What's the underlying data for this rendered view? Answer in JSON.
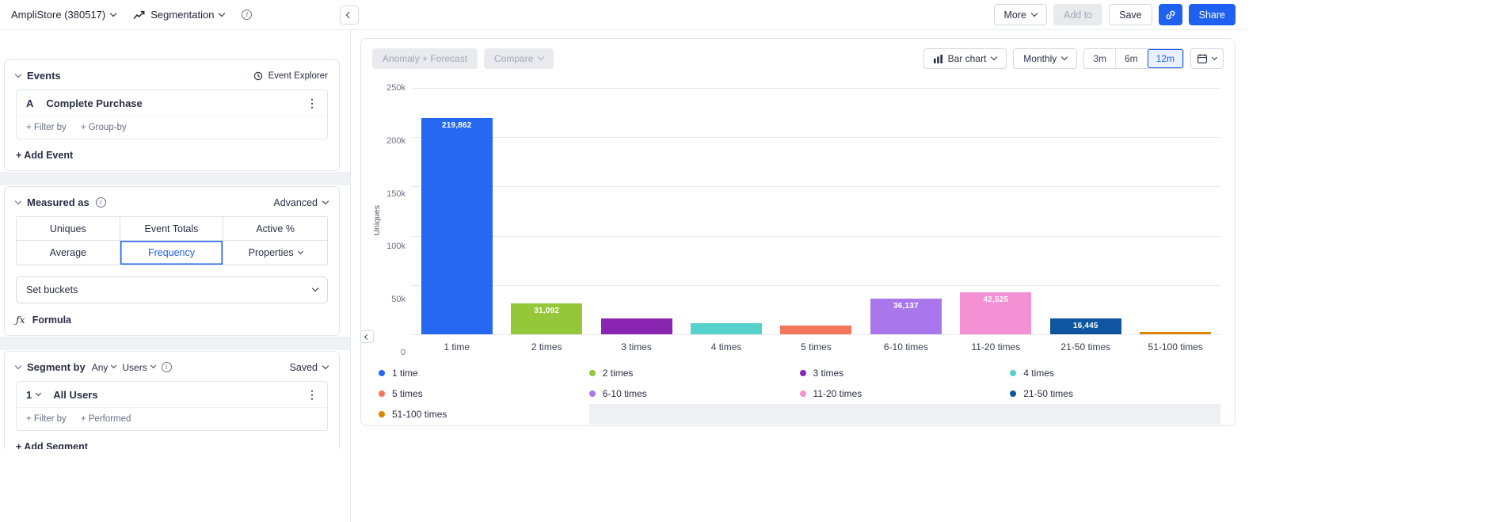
{
  "topbar": {
    "project": "AmpliStore (380517)",
    "view": "Segmentation",
    "more": "More",
    "add_to": "Add to",
    "save": "Save",
    "share": "Share"
  },
  "events": {
    "title": "Events",
    "explorer": "Event Explorer",
    "badge": "A",
    "event_name": "Complete Purchase",
    "filter_by": "+ Filter by",
    "group_by": "+ Group-by",
    "add_event": "+ Add Event"
  },
  "measured": {
    "title": "Measured as",
    "advanced": "Advanced",
    "tabs": [
      {
        "label": "Uniques"
      },
      {
        "label": "Event Totals"
      },
      {
        "label": "Active %"
      },
      {
        "label": "Average"
      },
      {
        "label": "Frequency",
        "selected": true
      },
      {
        "label": "Properties",
        "chevron": true
      }
    ],
    "set_buckets": "Set buckets",
    "formula_icon": "ƒx",
    "formula": "Formula"
  },
  "segment": {
    "title": "Segment by",
    "any": "Any",
    "users": "Users",
    "saved": "Saved",
    "index": "1",
    "name": "All Users",
    "filter_by": "+ Filter by",
    "performed": "+ Performed",
    "add_segment": "+ Add Segment"
  },
  "chart_controls": {
    "anomaly": "Anomaly + Forecast",
    "compare": "Compare",
    "chart_type": "Bar chart",
    "interval": "Monthly",
    "ranges": [
      "3m",
      "6m",
      "12m"
    ],
    "selected_range": "12m"
  },
  "chart_data": {
    "type": "bar",
    "title": "",
    "xlabel": "",
    "ylabel": "Uniques",
    "categories": [
      "1 time",
      "2 times",
      "3 times",
      "4 times",
      "5 times",
      "6-10 times",
      "11-20 times",
      "21-50 times",
      "51-100 times"
    ],
    "values": [
      219862,
      31092,
      16000,
      11000,
      8500,
      36137,
      42525,
      16445,
      2200
    ],
    "bar_labels": [
      "219,862",
      "31,092",
      "",
      "",
      "",
      "36,137",
      "42,525",
      "16,445",
      ""
    ],
    "colors": [
      "#2668f2",
      "#94c739",
      "#8a25b1",
      "#57d1cc",
      "#f3765d",
      "#a977eb",
      "#f490d4",
      "#0f55a0",
      "#df8403"
    ],
    "ylim": [
      0,
      250000
    ],
    "yticks": [
      {
        "label": "250k",
        "value": 250000
      },
      {
        "label": "200k",
        "value": 200000
      },
      {
        "label": "150k",
        "value": 150000
      },
      {
        "label": "100k",
        "value": 100000
      },
      {
        "label": "50k",
        "value": 50000
      },
      {
        "label": "0",
        "value": 0
      }
    ],
    "grid": true,
    "legend_position": "bottom"
  },
  "colors": {
    "accent_blue": "#1e61f0",
    "text_primary": "#2a2f45",
    "text_secondary": "#6b7087",
    "disabled_bg": "#e9eaee"
  }
}
